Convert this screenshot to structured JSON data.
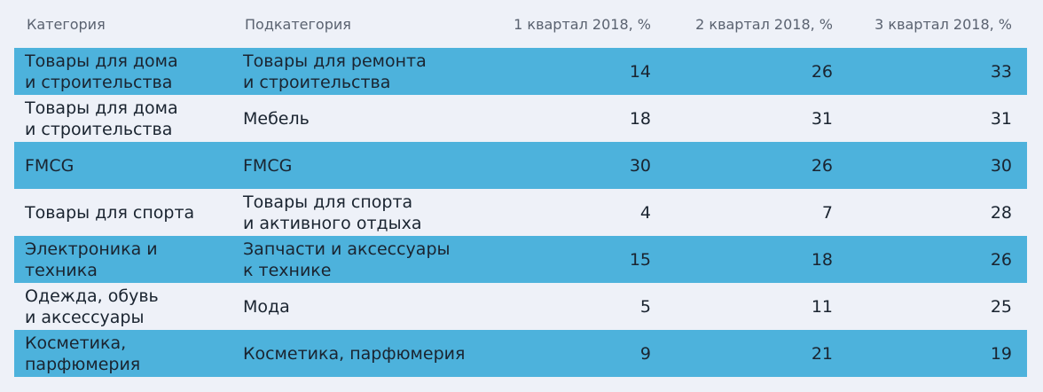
{
  "header": {
    "category": "Категория",
    "subcategory": "Подкатегория",
    "q1": "1 квартал 2018, %",
    "q2": "2 квартал 2018, %",
    "q3": "3 квартал 2018, %"
  },
  "rows": [
    {
      "category": "Товары для дома\nи строительства",
      "subcategory": "Товары для ремонта\nи строительства",
      "q1": "14",
      "q2": "26",
      "q3": "33"
    },
    {
      "category": "Товары для дома\nи строительства",
      "subcategory": "Мебель",
      "q1": "18",
      "q2": "31",
      "q3": "31"
    },
    {
      "category": "FMCG",
      "subcategory": "FMCG",
      "q1": "30",
      "q2": "26",
      "q3": "30"
    },
    {
      "category": "Товары для спорта",
      "subcategory": "Товары для спорта\nи активного отдыха",
      "q1": "4",
      "q2": "7",
      "q3": "28"
    },
    {
      "category": "Электроника и\nтехника",
      "subcategory": "Запчасти и аксессуары\nк технике",
      "q1": "15",
      "q2": "18",
      "q3": "26"
    },
    {
      "category": "Одежда, обувь\nи аксессуары",
      "subcategory": "Мода",
      "q1": "5",
      "q2": "11",
      "q3": "25"
    },
    {
      "category": "Косметика,\nпарфюмерия",
      "subcategory": "Косметика, парфюмерия",
      "q1": "9",
      "q2": "21",
      "q3": "19"
    }
  ],
  "colors": {
    "shaded_row": "#4db2dc",
    "background": "#eef1f8"
  }
}
